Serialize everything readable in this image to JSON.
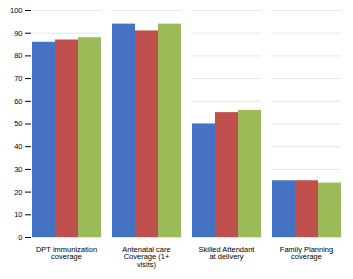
{
  "chart_data": {
    "type": "bar",
    "categories": [
      "DPT immunization\ncoverage",
      "Antenatal care\nCoverage (1+\nvisits)",
      "Skilled Attendant\nat delivery",
      "Family Planning\ncoverage"
    ],
    "series": [
      {
        "color": "#4472C4",
        "values": [
          86,
          94,
          50,
          25
        ]
      },
      {
        "color": "#C0504D",
        "values": [
          87,
          91,
          55,
          25
        ]
      },
      {
        "color": "#9BBB59",
        "values": [
          88,
          94,
          56,
          24
        ]
      }
    ],
    "ylim": [
      0,
      100
    ],
    "yticks": [
      0,
      10,
      20,
      30,
      40,
      50,
      60,
      70,
      80,
      90,
      100
    ],
    "grid": true
  }
}
